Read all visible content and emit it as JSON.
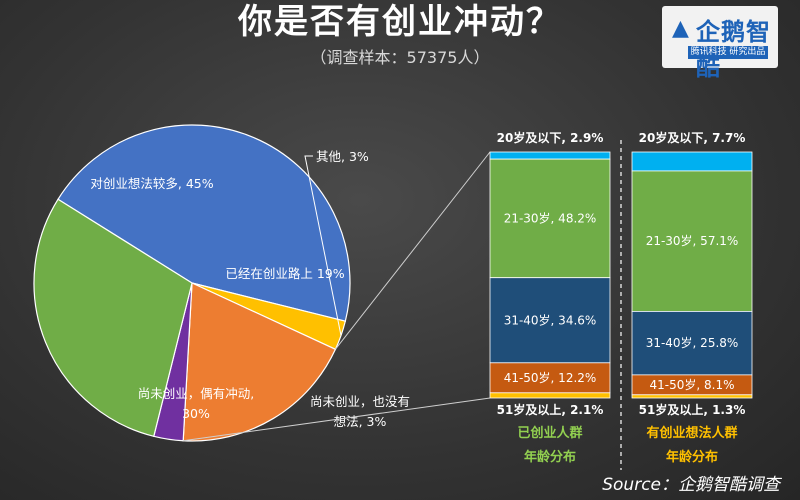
{
  "title": "你是否有创业冲动？",
  "subtitle": "（调查样本：57375人）",
  "logo": {
    "name": "企鹅智酷",
    "tagline": "腾讯科技 研究出品",
    "icon": "penguin-logo-icon"
  },
  "source": "Source：企鹅智酷调查",
  "colors": {
    "blue": "#4472c4",
    "green": "#70ad47",
    "orange": "#ed7d31",
    "yellow": "#ffc000",
    "purple": "#7030a0",
    "cyan": "#00b0f0",
    "navy": "#1f4e79",
    "brown": "#c55a11",
    "gold": "#ffc000",
    "stack_label_green": "#92d050",
    "stack_label_orange": "#ffc000"
  },
  "chart_data": [
    {
      "type": "pie",
      "slices": [
        {
          "label": "对创业想法较多, 45%",
          "value": 45,
          "color": "#4472c4"
        },
        {
          "label": "其他, 3%",
          "value": 3,
          "color": "#ffc000"
        },
        {
          "label": "已经在创业路上 19%",
          "value": 19,
          "color": "#ed7d31"
        },
        {
          "label": "尚未创业，也没有想法, 3%",
          "value": 3,
          "color": "#7030a0"
        },
        {
          "label": "尚未创业，偶有冲动, 30%",
          "value": 30,
          "color": "#70ad47"
        }
      ]
    },
    {
      "type": "bar",
      "stacked": true,
      "categories": [
        "已创业人群\n年龄分布",
        "有创业想法人群\n年龄分布"
      ],
      "category_labels": [
        {
          "line1": "已创业人群",
          "line2": "年龄分布"
        },
        {
          "line1": "有创业想法人群",
          "line2": "年龄分布"
        }
      ],
      "series": [
        {
          "name": "20岁及以下",
          "values": [
            2.9,
            7.7
          ],
          "labels": [
            "20岁及以下, 2.9%",
            "20岁及以下, 7.7%"
          ],
          "color": "#00b0f0"
        },
        {
          "name": "21-30岁",
          "values": [
            48.2,
            57.1
          ],
          "labels": [
            "21-30岁, 48.2%",
            "21-30岁, 57.1%"
          ],
          "color": "#70ad47"
        },
        {
          "name": "31-40岁",
          "values": [
            34.6,
            25.8
          ],
          "labels": [
            "31-40岁, 34.6%",
            "31-40岁, 25.8%"
          ],
          "color": "#1f4e79"
        },
        {
          "name": "41-50岁",
          "values": [
            12.2,
            8.1
          ],
          "labels": [
            "41-50岁, 12.2%",
            "41-50岁, 8.1%"
          ],
          "color": "#c55a11"
        },
        {
          "name": "51岁及以上",
          "values": [
            2.1,
            1.3
          ],
          "labels": [
            "51岁及以上, 2.1%",
            "51岁及以上, 1.3%"
          ],
          "color": "#ffc000"
        }
      ],
      "ylim": [
        0,
        100
      ]
    }
  ]
}
